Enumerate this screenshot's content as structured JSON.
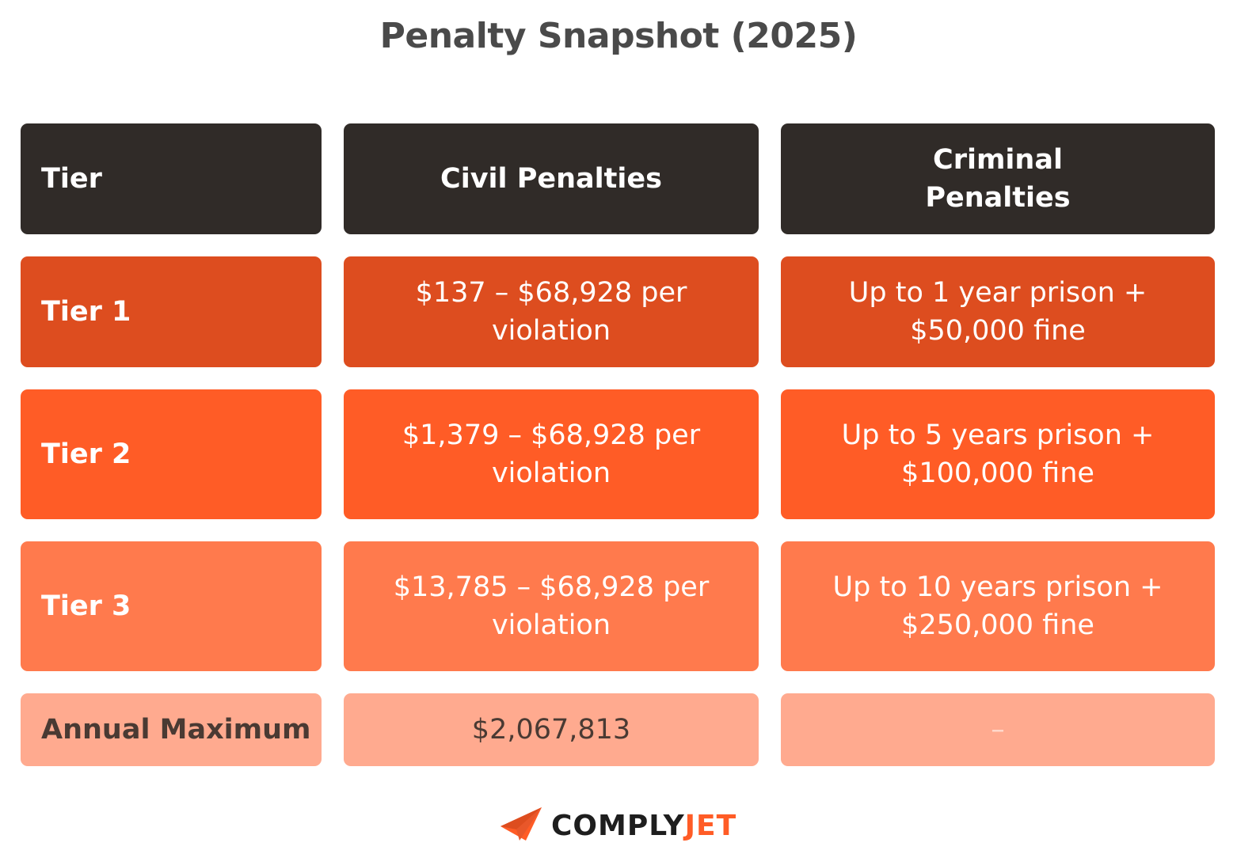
{
  "title": "Penalty Snapshot (2025)",
  "header": {
    "tier": "Tier",
    "civil": "Civil Penalties",
    "criminal": "Criminal Penalties"
  },
  "rows": [
    {
      "tier": "Tier 1",
      "civil": "$137 – $68,928 per violation",
      "criminal": "Up to 1 year prison + $50,000 fine"
    },
    {
      "tier": "Tier 2",
      "civil": "$1,379 – $68,928 per violation",
      "criminal": "Up to 5 years prison + $100,000 fine"
    },
    {
      "tier": "Tier 3",
      "civil": "$13,785 – $68,928 per violation",
      "criminal": "Up to 10 years prison + $250,000 fine"
    }
  ],
  "annual": {
    "label": "Annual Maximum",
    "civil": "$2,067,813",
    "criminal": "–"
  },
  "logo": {
    "part1": "COMPLY",
    "part2": "JET"
  },
  "colors": {
    "header": "#302b28",
    "tier1": "#dd4d1f",
    "tier2": "#ff5c26",
    "tier3": "#ff7a4d",
    "annual": "#ffaa8f",
    "brand_accent": "#ff5c26"
  }
}
